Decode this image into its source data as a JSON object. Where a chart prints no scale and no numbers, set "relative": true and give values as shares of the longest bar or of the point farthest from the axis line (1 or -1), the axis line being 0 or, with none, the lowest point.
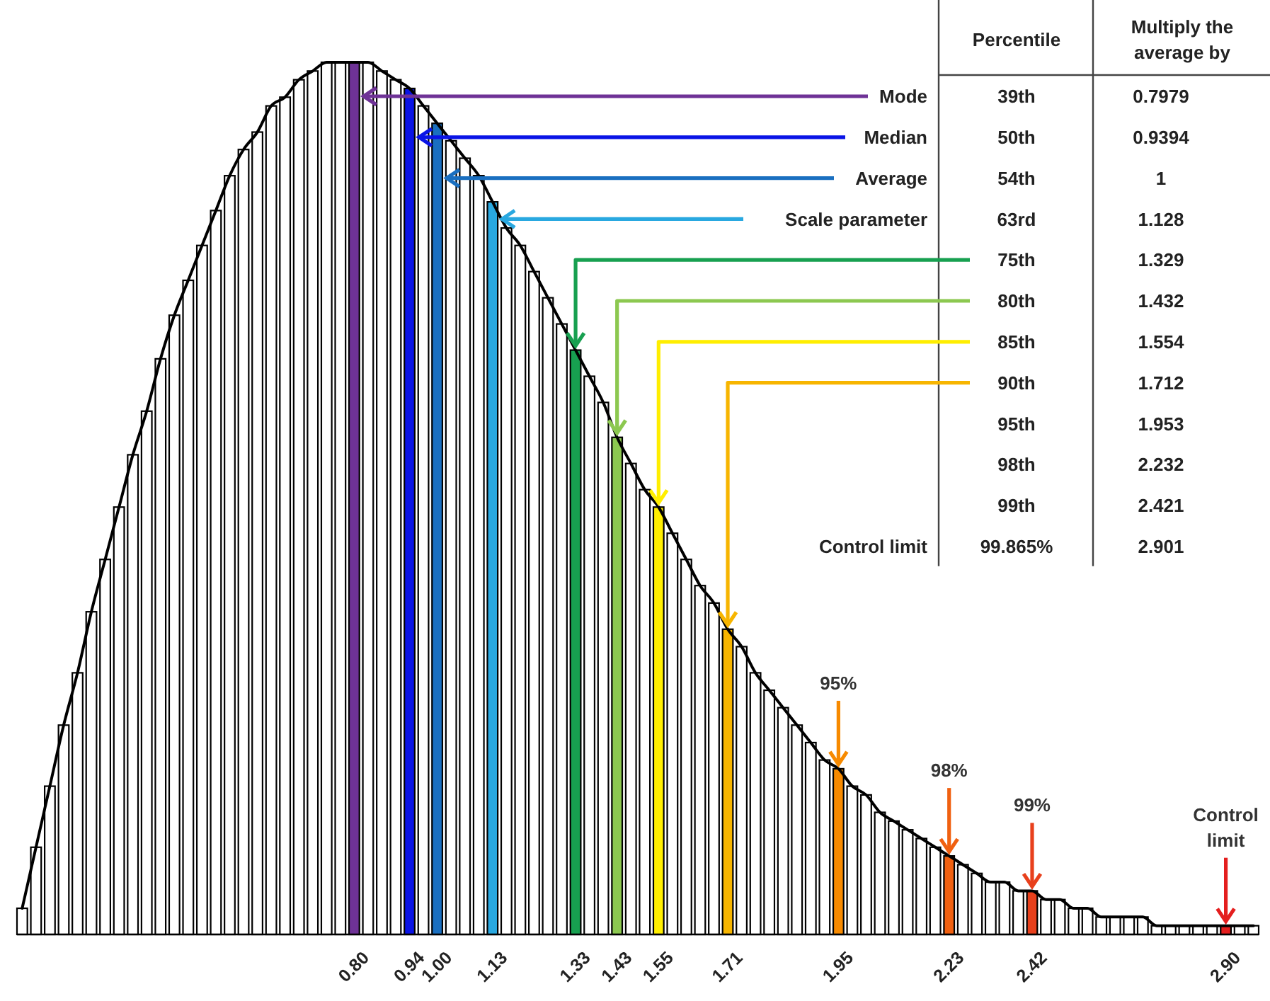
{
  "chart_data": [
    {
      "type": "bar",
      "relative": true,
      "categories": [
        null,
        null,
        null,
        null,
        null,
        null,
        null,
        null,
        null,
        null,
        null,
        null,
        null,
        null,
        null,
        null,
        null,
        null,
        null,
        null,
        null,
        null,
        null,
        null,
        "0.80",
        null,
        null,
        null,
        "0.94",
        null,
        "1.00",
        null,
        null,
        null,
        "1.13",
        null,
        null,
        null,
        null,
        null,
        "1.33",
        null,
        null,
        "1.43",
        null,
        null,
        "1.55",
        null,
        null,
        null,
        null,
        "1.71",
        null,
        null,
        null,
        null,
        null,
        null,
        null,
        "1.95",
        null,
        null,
        null,
        null,
        null,
        null,
        null,
        "2.23",
        null,
        null,
        null,
        null,
        null,
        "2.42",
        null,
        null,
        null,
        null,
        null,
        null,
        null,
        null,
        null,
        null,
        null,
        null,
        null,
        "2.90",
        null,
        null
      ],
      "series": [
        {
          "type": "bar",
          "values": [
            0.03,
            0.1,
            0.17,
            0.24,
            0.3,
            0.37,
            0.43,
            0.49,
            0.55,
            0.6,
            0.66,
            0.71,
            0.75,
            0.79,
            0.83,
            0.87,
            0.9,
            0.92,
            0.95,
            0.96,
            0.98,
            0.99,
            1.0,
            1.0,
            1.0,
            1.0,
            0.99,
            0.98,
            0.97,
            0.95,
            0.93,
            0.91,
            0.89,
            0.87,
            0.84,
            0.81,
            0.79,
            0.76,
            0.73,
            0.7,
            0.67,
            0.64,
            0.61,
            0.57,
            0.54,
            0.51,
            0.49,
            0.46,
            0.43,
            0.4,
            0.38,
            0.35,
            0.33,
            0.3,
            0.28,
            0.26,
            0.24,
            0.22,
            0.2,
            0.19,
            0.17,
            0.16,
            0.14,
            0.13,
            0.12,
            0.11,
            0.1,
            0.09,
            0.08,
            0.07,
            0.06,
            0.06,
            0.05,
            0.05,
            0.04,
            0.04,
            0.03,
            0.03,
            0.02,
            0.02,
            0.02,
            0.02,
            0.01,
            0.01,
            0.01,
            0.01,
            0.01,
            0.01,
            0.01,
            0.01
          ],
          "colors": [
            "#ffffff",
            "#ffffff",
            "#ffffff",
            "#ffffff",
            "#ffffff",
            "#ffffff",
            "#ffffff",
            "#ffffff",
            "#ffffff",
            "#ffffff",
            "#ffffff",
            "#ffffff",
            "#ffffff",
            "#ffffff",
            "#ffffff",
            "#ffffff",
            "#ffffff",
            "#ffffff",
            "#ffffff",
            "#ffffff",
            "#ffffff",
            "#ffffff",
            "#ffffff",
            "#ffffff",
            "#6e3296",
            "#ffffff",
            "#ffffff",
            "#ffffff",
            "#0a14e6",
            "#ffffff",
            "#1a6fc0",
            "#ffffff",
            "#ffffff",
            "#ffffff",
            "#29a8e0",
            "#ffffff",
            "#ffffff",
            "#ffffff",
            "#ffffff",
            "#ffffff",
            "#17a050",
            "#ffffff",
            "#ffffff",
            "#8cc850",
            "#ffffff",
            "#ffffff",
            "#ffee00",
            "#ffffff",
            "#ffffff",
            "#ffffff",
            "#ffffff",
            "#f7b500",
            "#ffffff",
            "#ffffff",
            "#ffffff",
            "#ffffff",
            "#ffffff",
            "#ffffff",
            "#ffffff",
            "#f78a00",
            "#ffffff",
            "#ffffff",
            "#ffffff",
            "#ffffff",
            "#ffffff",
            "#ffffff",
            "#ffffff",
            "#f06010",
            "#ffffff",
            "#ffffff",
            "#ffffff",
            "#ffffff",
            "#ffffff",
            "#e8401c",
            "#ffffff",
            "#ffffff",
            "#ffffff",
            "#ffffff",
            "#ffffff",
            "#ffffff",
            "#ffffff",
            "#ffffff",
            "#ffffff",
            "#ffffff",
            "#ffffff",
            "#ffffff",
            "#ffffff",
            "#e41e1e",
            "#ffffff",
            "#ffffff"
          ]
        },
        {
          "type": "line",
          "color": "#000000",
          "values": [
            0.03,
            0.1,
            0.17,
            0.24,
            0.3,
            0.37,
            0.43,
            0.49,
            0.55,
            0.6,
            0.66,
            0.71,
            0.75,
            0.79,
            0.83,
            0.87,
            0.9,
            0.92,
            0.95,
            0.96,
            0.98,
            0.99,
            1.0,
            1.0,
            1.0,
            1.0,
            0.99,
            0.98,
            0.97,
            0.95,
            0.93,
            0.91,
            0.89,
            0.87,
            0.84,
            0.81,
            0.79,
            0.76,
            0.73,
            0.7,
            0.67,
            0.64,
            0.61,
            0.57,
            0.54,
            0.51,
            0.49,
            0.46,
            0.43,
            0.4,
            0.38,
            0.35,
            0.33,
            0.3,
            0.28,
            0.26,
            0.24,
            0.22,
            0.2,
            0.19,
            0.17,
            0.16,
            0.14,
            0.13,
            0.12,
            0.11,
            0.1,
            0.09,
            0.08,
            0.07,
            0.06,
            0.06,
            0.05,
            0.05,
            0.04,
            0.04,
            0.03,
            0.03,
            0.02,
            0.02,
            0.02,
            0.02,
            0.01,
            0.01,
            0.01,
            0.01,
            0.01,
            0.01,
            0.01,
            0.01
          ]
        }
      ],
      "annotations": [
        {
          "text": "95%",
          "x": "1.95",
          "y": 0.19
        },
        {
          "text": "98%",
          "x": "2.23",
          "y": 0.09
        },
        {
          "text": "99%",
          "x": "2.42",
          "y": 0.05
        },
        {
          "text": "Control limit",
          "x": "2.90",
          "y": 0.01
        }
      ]
    },
    {
      "type": "other",
      "categories": [
        "Mode",
        "Median",
        "Average",
        "Scale parameter",
        null,
        null,
        null,
        null,
        null,
        null,
        null,
        "Control limit"
      ],
      "annotations": [
        "Percentile",
        "Multiply the average by",
        "39th",
        "0.7979",
        "50th",
        "0.9394",
        "54th",
        "1",
        "63rd",
        "1.128",
        "75th",
        "1.329",
        "80th",
        "1.432",
        "85th",
        "1.554",
        "90th",
        "1.712",
        "95th",
        "1.953",
        "98th",
        "2.232",
        "99th",
        "2.421",
        "99.865%",
        "2.901"
      ]
    }
  ]
}
